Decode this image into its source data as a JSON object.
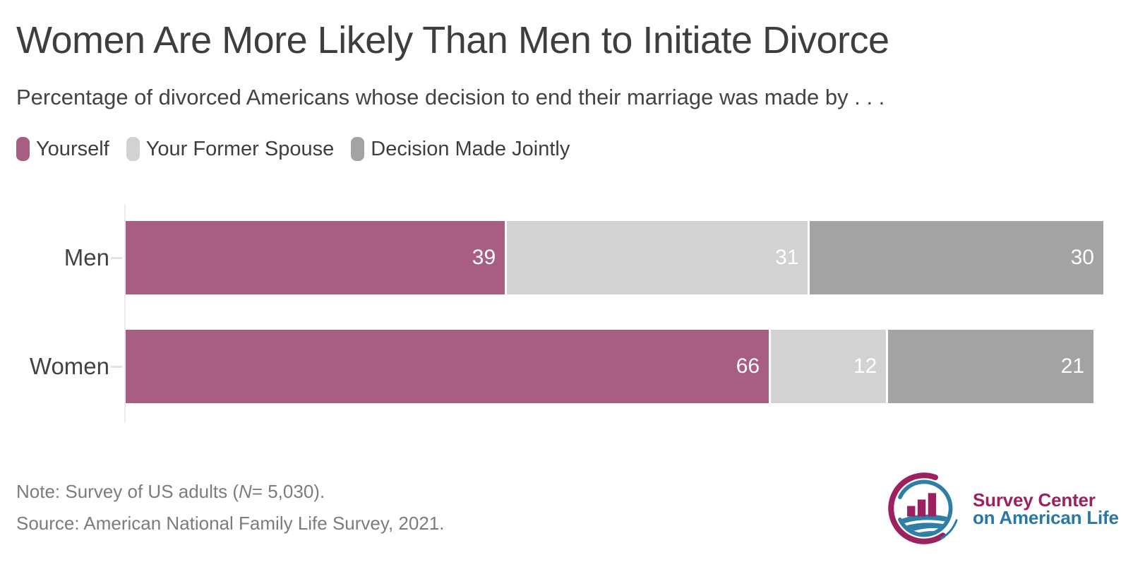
{
  "header": {
    "title": "Women Are More Likely Than Men to Initiate Divorce",
    "subtitle": "Percentage of divorced Americans whose decision to end their marriage was made by . . ."
  },
  "legend": [
    {
      "label": "Yourself",
      "color": "#a85e83"
    },
    {
      "label": "Your Former Spouse",
      "color": "#d2d2d2"
    },
    {
      "label": "Decision Made Jointly",
      "color": "#a3a3a3"
    }
  ],
  "chart_data": {
    "type": "bar",
    "orientation": "horizontal",
    "stacked": true,
    "categories": [
      "Men",
      "Women"
    ],
    "series": [
      {
        "name": "Yourself",
        "color": "#a85e83",
        "values": [
          39,
          66
        ]
      },
      {
        "name": "Your Former Spouse",
        "color": "#d2d2d2",
        "values": [
          31,
          12
        ]
      },
      {
        "name": "Decision Made Jointly",
        "color": "#a3a3a3",
        "values": [
          30,
          21
        ]
      }
    ],
    "xlim": [
      0,
      100
    ],
    "value_labels": "inside right end of each segment, white",
    "grid": "off",
    "legend_position": "top-left"
  },
  "footer": {
    "note_prefix": "Note: Survey of US adults (",
    "note_n": "N",
    "note_rest": "= 5,030).",
    "source": "Source: American National Family Life Survey, 2021."
  },
  "logo": {
    "icon": "bar-chart-in-swirl-circle-icon",
    "line1": "Survey Center",
    "line2": "on American Life",
    "color_primary": "#9b2160",
    "color_secondary": "#2778a9"
  }
}
